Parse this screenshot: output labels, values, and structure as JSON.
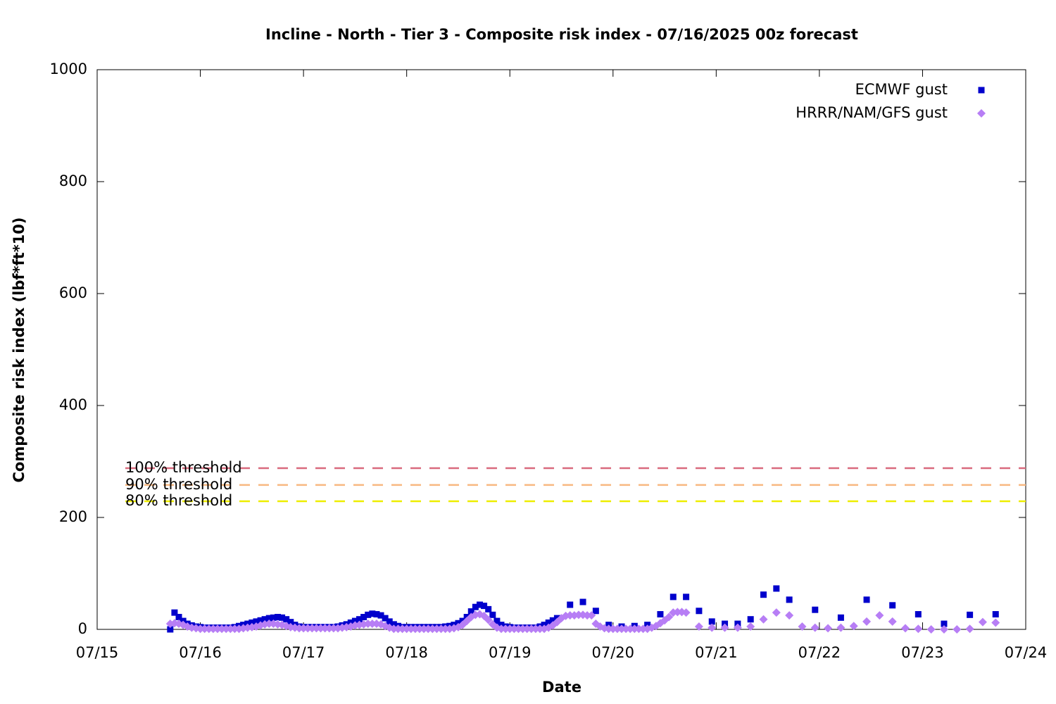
{
  "chart_data": {
    "type": "scatter",
    "title": "Incline - North - Tier 3 - Composite risk index - 07/16/2025 00z forecast",
    "xlabel": "Date",
    "ylabel": "Composite risk index (lbf*ft*10)",
    "xlim": [
      0,
      216
    ],
    "xticks": [
      {
        "value": 0,
        "label": "07/15"
      },
      {
        "value": 24,
        "label": "07/16"
      },
      {
        "value": 48,
        "label": "07/17"
      },
      {
        "value": 72,
        "label": "07/18"
      },
      {
        "value": 96,
        "label": "07/19"
      },
      {
        "value": 120,
        "label": "07/20"
      },
      {
        "value": 144,
        "label": "07/21"
      },
      {
        "value": 168,
        "label": "07/22"
      },
      {
        "value": 192,
        "label": "07/23"
      },
      {
        "value": 216,
        "label": "07/24"
      }
    ],
    "ylim": [
      0,
      1000
    ],
    "yticks": [
      0,
      200,
      400,
      600,
      800,
      1000
    ],
    "legend": "top-right",
    "thresholds": [
      {
        "label": "100% threshold",
        "value": 288,
        "color": "#d96a7e"
      },
      {
        "label": "90% threshold",
        "value": 258,
        "color": "#f8b880"
      },
      {
        "label": "80% threshold",
        "value": 229,
        "color": "#eeee00"
      }
    ],
    "series": [
      {
        "name": "ECMWF gust",
        "color": "#0000cc",
        "marker": "square",
        "x": [
          17,
          18,
          19,
          20,
          21,
          22,
          23,
          24,
          25,
          26,
          27,
          28,
          29,
          30,
          31,
          32,
          33,
          34,
          35,
          36,
          37,
          38,
          39,
          40,
          41,
          42,
          43,
          44,
          45,
          46,
          47,
          48,
          49,
          50,
          51,
          52,
          53,
          54,
          55,
          56,
          57,
          58,
          59,
          60,
          61,
          62,
          63,
          64,
          65,
          66,
          67,
          68,
          69,
          70,
          71,
          72,
          73,
          74,
          75,
          76,
          77,
          78,
          79,
          80,
          81,
          82,
          83,
          84,
          85,
          86,
          87,
          88,
          89,
          90,
          91,
          92,
          93,
          94,
          95,
          96,
          97,
          98,
          99,
          100,
          101,
          102,
          103,
          104,
          105,
          106,
          107,
          110,
          113,
          116,
          119,
          122,
          125,
          128,
          131,
          134,
          137,
          140,
          143,
          146,
          149,
          152,
          155,
          158,
          161,
          167,
          173,
          179,
          185,
          191,
          197,
          203,
          209
        ],
        "values": [
          0,
          30,
          22,
          15,
          10,
          7,
          5,
          4,
          3,
          3,
          3,
          3,
          3,
          3,
          3,
          4,
          6,
          8,
          10,
          12,
          14,
          16,
          18,
          20,
          21,
          22,
          21,
          18,
          13,
          8,
          5,
          4,
          4,
          4,
          4,
          4,
          4,
          4,
          4,
          5,
          7,
          9,
          12,
          15,
          18,
          22,
          26,
          28,
          27,
          25,
          20,
          14,
          9,
          6,
          4,
          4,
          4,
          4,
          4,
          4,
          4,
          4,
          4,
          4,
          5,
          6,
          8,
          11,
          15,
          22,
          32,
          40,
          44,
          42,
          36,
          26,
          15,
          8,
          5,
          4,
          3,
          3,
          3,
          3,
          3,
          3,
          5,
          8,
          12,
          16,
          20,
          44,
          49,
          33,
          8,
          5,
          6,
          8,
          27,
          58,
          58,
          33,
          14,
          10,
          10,
          18,
          62,
          73,
          53,
          35,
          21,
          53,
          43,
          27,
          10,
          26,
          27
        ]
      },
      {
        "name": "HRRR/NAM/GFS gust",
        "color": "#b77ef5",
        "marker": "diamond",
        "x": [
          17,
          18,
          19,
          20,
          21,
          22,
          23,
          24,
          25,
          26,
          27,
          28,
          29,
          30,
          31,
          32,
          33,
          34,
          35,
          36,
          37,
          38,
          39,
          40,
          41,
          42,
          43,
          44,
          45,
          46,
          47,
          48,
          49,
          50,
          51,
          52,
          53,
          54,
          55,
          56,
          57,
          58,
          59,
          60,
          61,
          62,
          63,
          64,
          65,
          66,
          67,
          68,
          69,
          70,
          71,
          72,
          73,
          74,
          75,
          76,
          77,
          78,
          79,
          80,
          81,
          82,
          83,
          84,
          85,
          86,
          87,
          88,
          89,
          90,
          91,
          92,
          93,
          94,
          95,
          96,
          97,
          98,
          99,
          100,
          101,
          102,
          103,
          104,
          105,
          106,
          107,
          108,
          109,
          110,
          111,
          112,
          113,
          114,
          115,
          116,
          117,
          118,
          119,
          120,
          121,
          122,
          123,
          124,
          125,
          126,
          127,
          128,
          129,
          130,
          131,
          132,
          133,
          134,
          135,
          136,
          137,
          140,
          143,
          146,
          149,
          152,
          155,
          158,
          161,
          164,
          167,
          170,
          173,
          176,
          179,
          182,
          185,
          188,
          191,
          194,
          197,
          200,
          203,
          206,
          209
        ],
        "values": [
          10,
          11,
          10,
          8,
          5,
          3,
          2,
          1,
          1,
          1,
          1,
          1,
          1,
          1,
          1,
          1,
          1,
          2,
          3,
          4,
          5,
          7,
          9,
          10,
          10,
          9,
          8,
          6,
          4,
          3,
          2,
          2,
          2,
          2,
          2,
          2,
          2,
          2,
          2,
          2,
          3,
          4,
          5,
          7,
          8,
          9,
          10,
          10,
          10,
          9,
          6,
          3,
          1,
          1,
          1,
          1,
          1,
          1,
          1,
          1,
          1,
          1,
          1,
          1,
          1,
          1,
          2,
          4,
          8,
          15,
          22,
          26,
          27,
          24,
          17,
          9,
          3,
          1,
          1,
          1,
          1,
          1,
          1,
          1,
          1,
          1,
          1,
          1,
          3,
          7,
          13,
          20,
          24,
          25,
          25,
          26,
          26,
          25,
          25,
          10,
          5,
          2,
          1,
          1,
          1,
          1,
          1,
          1,
          1,
          1,
          1,
          1,
          3,
          6,
          11,
          16,
          22,
          30,
          31,
          31,
          30,
          5,
          3,
          3,
          3,
          5,
          18,
          30,
          25,
          5,
          3,
          2,
          3,
          6,
          14,
          25,
          14,
          2,
          1,
          0,
          0,
          0,
          1,
          13,
          12
        ]
      }
    ]
  }
}
